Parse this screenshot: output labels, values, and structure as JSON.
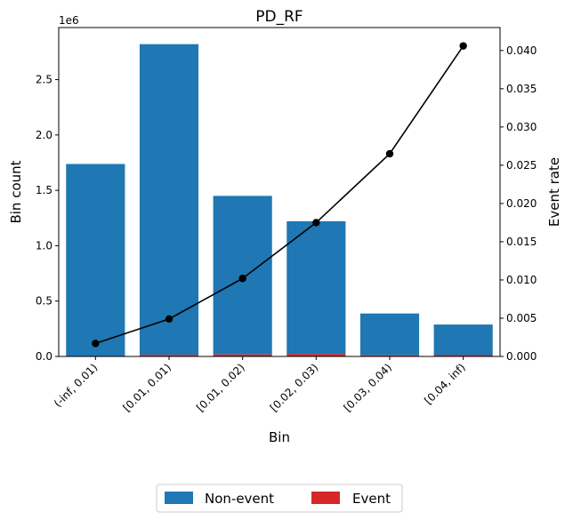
{
  "chart_data": {
    "type": "bar",
    "title": "PD_RF",
    "xlabel": "Bin",
    "ylabel_left": "Bin count",
    "ylabel_right": "Event rate",
    "y_left_multiplier": "1e6",
    "categories": [
      "(-inf, 0.01)",
      "[0.01, 0.01)",
      "[0.01, 0.02)",
      "[0.02, 0.03)",
      "[0.03, 0.04)",
      "[0.04, inf)"
    ],
    "series": [
      {
        "name": "Non-event",
        "color": "#1f77b4",
        "values": [
          1735000,
          2805000,
          1432000,
          1200000,
          378000,
          276000
        ],
        "stacked_on": "Event"
      },
      {
        "name": "Event",
        "color": "#d62728",
        "values": [
          3000,
          15000,
          18000,
          21000,
          10000,
          12000
        ]
      }
    ],
    "event_rate": {
      "values": [
        0.0017,
        0.0049,
        0.0102,
        0.0175,
        0.0265,
        0.0406
      ],
      "color": "#000000",
      "axis": "right"
    },
    "ylim_left": [
      0,
      2.97
    ],
    "ylim_right": [
      0,
      0.043
    ],
    "yticks_left": [
      "0.0",
      "0.5",
      "1.0",
      "1.5",
      "2.0",
      "2.5"
    ],
    "yticks_right": [
      "0.000",
      "0.005",
      "0.010",
      "0.015",
      "0.020",
      "0.025",
      "0.030",
      "0.035",
      "0.040"
    ],
    "legend": {
      "placement": "bottom-center",
      "items": [
        "Non-event",
        "Event"
      ]
    }
  }
}
